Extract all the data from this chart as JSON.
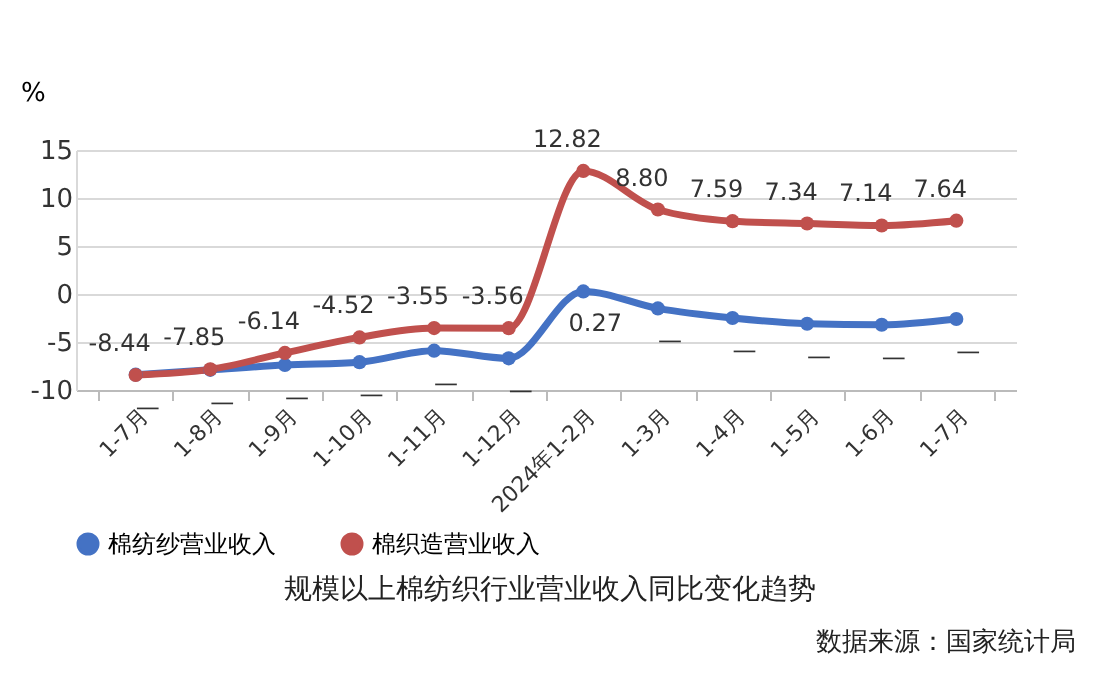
{
  "chart_data": {
    "type": "line",
    "title": "规模以上棉纺织行业营业收入同比变化趋势",
    "ylabel": "%",
    "categories": [
      "1-7月",
      "1-8月",
      "1-9月",
      "1-10月",
      "1-11月",
      "1-12月",
      "2024年1-2月",
      "1-3月",
      "1-4月",
      "1-5月",
      "1-6月",
      "1-7月"
    ],
    "series": [
      {
        "name": "棉纺纱营业收入",
        "color": "#4472c4",
        "values": [
          -8.4,
          -7.9,
          -7.4,
          -7.1,
          -5.9,
          -6.7,
          0.27,
          -1.5,
          -2.5,
          -3.1,
          -3.2,
          -2.6
        ],
        "value_labels": [
          "—",
          "—",
          "—",
          "—",
          "—",
          "—",
          "0.27",
          "—",
          "—",
          "—",
          "—",
          "—"
        ]
      },
      {
        "name": "棉织造营业收入",
        "color": "#c0504d",
        "values": [
          -8.44,
          -7.85,
          -6.14,
          -4.52,
          -3.55,
          -3.56,
          12.82,
          8.8,
          7.59,
          7.34,
          7.14,
          7.64
        ],
        "value_labels": [
          "-8.44",
          "-7.85",
          "-6.14",
          "-4.52",
          "-3.55",
          "-3.56",
          "12.82",
          "8.80",
          "7.59",
          "7.34",
          "7.14",
          "7.64"
        ]
      }
    ],
    "ylim": [
      -10,
      15
    ],
    "yticks": [
      -10,
      -5,
      0,
      5,
      10,
      15
    ],
    "grid": "y",
    "legend": "bottom",
    "marker": "circle",
    "line_style": "solid",
    "annotations": [
      "数据来源：国家统计局"
    ]
  }
}
